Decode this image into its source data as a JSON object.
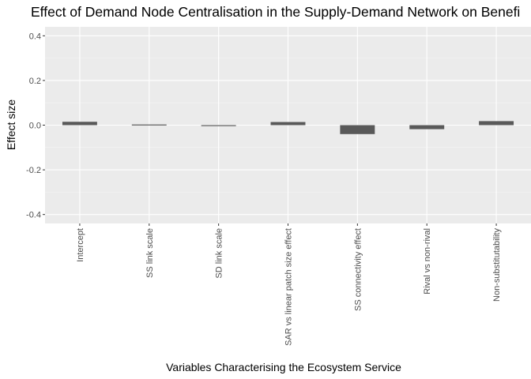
{
  "chart_data": {
    "type": "bar",
    "title": "Effect of Demand Node Centralisation in the Supply-Demand Network on Benefi",
    "xlabel": "Variables Characterising the Ecosystem Service",
    "ylabel": "Effect size",
    "categories": [
      "Intercept",
      "SS link scale",
      "SD link scale",
      "SAR vs linear patch size effect",
      "SS connectivity effect",
      "Rival vs non-rival",
      "Non-substitutability"
    ],
    "values": [
      0.015,
      0.003,
      -0.004,
      0.014,
      -0.04,
      -0.018,
      0.018
    ],
    "ylim": [
      -0.44,
      0.44
    ],
    "yticks": [
      -0.4,
      -0.2,
      0.0,
      0.2,
      0.4
    ],
    "ytick_labels": [
      "-0.4",
      "-0.2",
      "0.0",
      "0.2",
      "0.4"
    ],
    "grid": true,
    "legend": "none",
    "colors": {
      "panel_background": "#ebebeb",
      "grid_major": "#ffffff",
      "grid_minor": "#f5f5f5",
      "bar_fill": "#595959",
      "tick_text": "#4d4d4d",
      "tick_mark": "#333333"
    }
  }
}
